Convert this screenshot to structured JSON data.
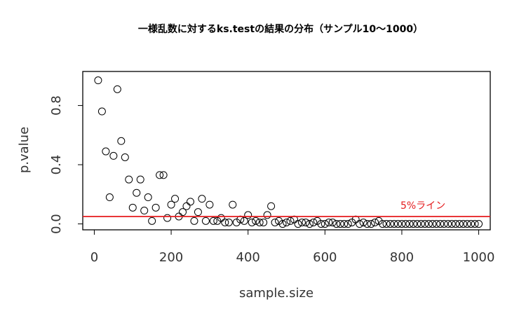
{
  "chart_data": {
    "type": "scatter",
    "title": "一様乱数に対するks.testの結果の分布（サンプル10〜1000）",
    "xlabel": "sample.size",
    "ylabel": "p.value",
    "xlim": [
      -30,
      1030
    ],
    "ylim": [
      -0.04,
      1.03
    ],
    "xticks": [
      0,
      200,
      400,
      600,
      800,
      1000
    ],
    "yticks": [
      0.0,
      0.4,
      0.8
    ],
    "ytick_labels": [
      "0.0",
      "0.4",
      "0.8"
    ],
    "grid": false,
    "marker": "open-circle",
    "reference_line": {
      "y": 0.05,
      "color": "#e41a1c",
      "label": "5%ライン"
    },
    "x": [
      10,
      20,
      30,
      40,
      50,
      60,
      70,
      80,
      90,
      100,
      110,
      120,
      130,
      140,
      150,
      160,
      170,
      180,
      190,
      200,
      210,
      220,
      230,
      240,
      250,
      260,
      270,
      280,
      290,
      300,
      310,
      320,
      330,
      340,
      350,
      360,
      370,
      380,
      390,
      400,
      410,
      420,
      430,
      440,
      450,
      460,
      470,
      480,
      490,
      500,
      510,
      520,
      530,
      540,
      550,
      560,
      570,
      580,
      590,
      600,
      610,
      620,
      630,
      640,
      650,
      660,
      670,
      680,
      690,
      700,
      710,
      720,
      730,
      740,
      750,
      760,
      770,
      780,
      790,
      800,
      810,
      820,
      830,
      840,
      850,
      860,
      870,
      880,
      890,
      900,
      910,
      920,
      930,
      940,
      950,
      960,
      970,
      980,
      990,
      1000
    ],
    "y": [
      0.97,
      0.76,
      0.49,
      0.18,
      0.46,
      0.91,
      0.56,
      0.45,
      0.3,
      0.11,
      0.21,
      0.3,
      0.09,
      0.18,
      0.02,
      0.11,
      0.33,
      0.33,
      0.04,
      0.13,
      0.17,
      0.05,
      0.08,
      0.12,
      0.15,
      0.02,
      0.08,
      0.17,
      0.02,
      0.13,
      0.02,
      0.02,
      0.04,
      0.01,
      0.01,
      0.13,
      0.01,
      0.03,
      0.02,
      0.06,
      0.01,
      0.02,
      0.01,
      0.01,
      0.06,
      0.12,
      0.01,
      0.02,
      0.0,
      0.01,
      0.02,
      0.03,
      0.0,
      0.01,
      0.01,
      0.0,
      0.01,
      0.02,
      0.0,
      0.0,
      0.01,
      0.01,
      0.0,
      0.0,
      0.0,
      0.0,
      0.01,
      0.03,
      0.0,
      0.01,
      0.0,
      0.0,
      0.01,
      0.02,
      0.0,
      0.0,
      0.0,
      0.0,
      0.0,
      0.0,
      0.0,
      0.0,
      0.0,
      0.0,
      0.0,
      0.0,
      0.0,
      0.0,
      0.0,
      0.0,
      0.0,
      0.0,
      0.0,
      0.0,
      0.0,
      0.0,
      0.0,
      0.0,
      0.0,
      0.0
    ]
  }
}
